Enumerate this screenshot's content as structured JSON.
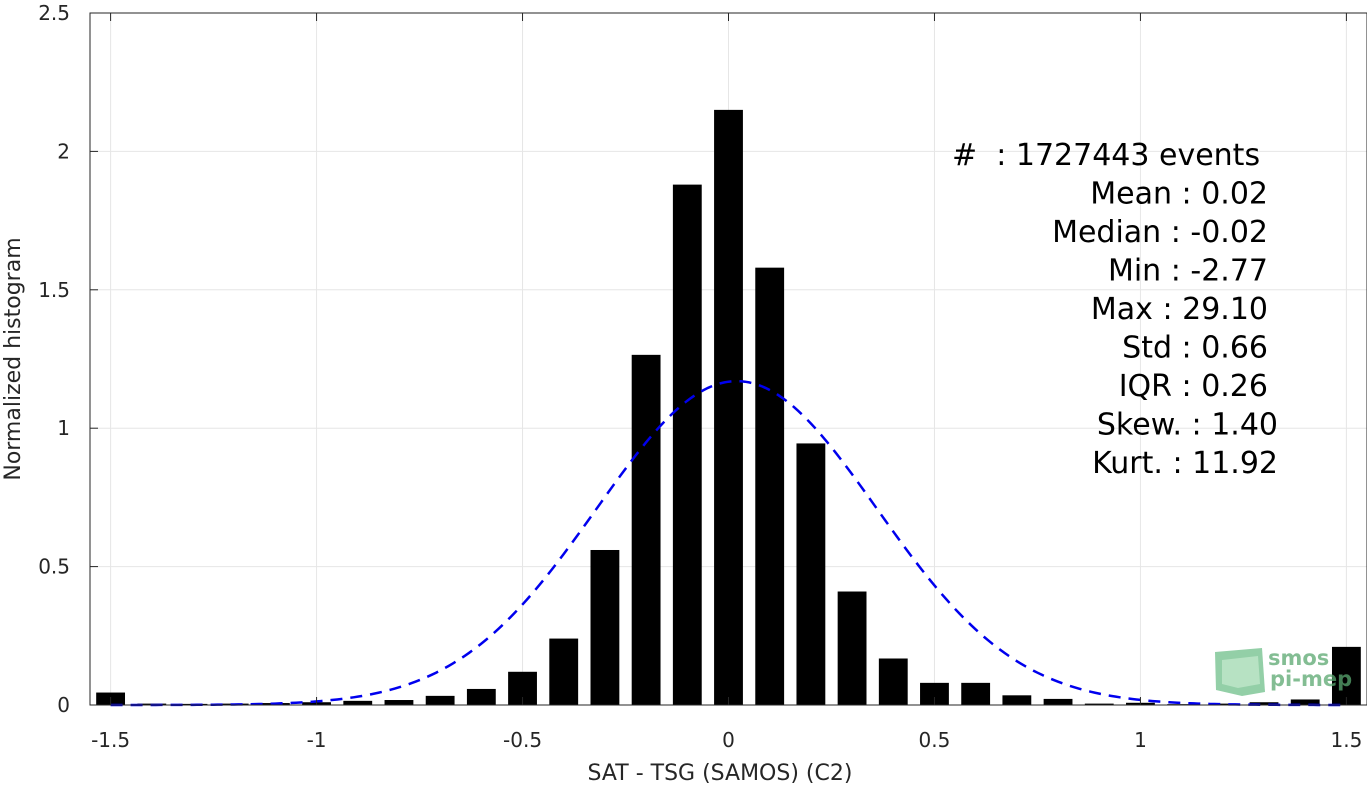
{
  "chart_data": {
    "type": "bar",
    "xlabel": "SAT - TSG (SAMOS) (C2)",
    "ylabel": "Normalized histogram",
    "xlim": [
      -1.55,
      1.55
    ],
    "ylim": [
      0,
      2.5
    ],
    "xticks": [
      "-1.5",
      "-1",
      "-0.5",
      "0",
      "0.5",
      "1",
      "1.5"
    ],
    "xtick_values": [
      -1.5,
      -1,
      -0.5,
      0,
      0.5,
      1,
      1.5
    ],
    "yticks": [
      "0",
      "0.5",
      "1",
      "1.5",
      "2",
      "2.5"
    ],
    "ytick_values": [
      0,
      0.5,
      1,
      1.5,
      2,
      2.5
    ],
    "grid": true,
    "bar_width": 0.07,
    "bars": {
      "x": [
        -1.5,
        -1.4,
        -1.3,
        -1.2,
        -1.1,
        -1.0,
        -0.9,
        -0.8,
        -0.7,
        -0.6,
        -0.5,
        -0.4,
        -0.3,
        -0.2,
        -0.1,
        0.0,
        0.1,
        0.2,
        0.3,
        0.4,
        0.5,
        0.6,
        0.7,
        0.8,
        0.9,
        1.0,
        1.1,
        1.2,
        1.3,
        1.4,
        1.5
      ],
      "values": [
        0.045,
        0.005,
        0.004,
        0.005,
        0.007,
        0.01,
        0.015,
        0.018,
        0.033,
        0.058,
        0.12,
        0.24,
        0.56,
        1.265,
        1.88,
        2.15,
        1.58,
        0.945,
        0.41,
        0.168,
        0.08,
        0.08,
        0.035,
        0.022,
        0.005,
        0.008,
        0.003,
        0.005,
        0.01,
        0.02,
        0.21
      ]
    },
    "fit_curve": {
      "style": "dashed",
      "mean": 0.02,
      "std": 0.34,
      "peak": 1.17,
      "color": "#0000ee"
    },
    "bar_color": "#000000",
    "stats": [
      "#  : 1727443 events",
      "Mean : 0.02",
      "Median : -0.02",
      "Min : -2.77",
      "Max : 29.10",
      "Std : 0.66",
      "IQR : 0.26",
      "Skew. : 1.40",
      "Kurt. : 11.92"
    ]
  },
  "logo": {
    "line1": "smos",
    "line2": "pi-mep",
    "color": "#5aa870"
  }
}
